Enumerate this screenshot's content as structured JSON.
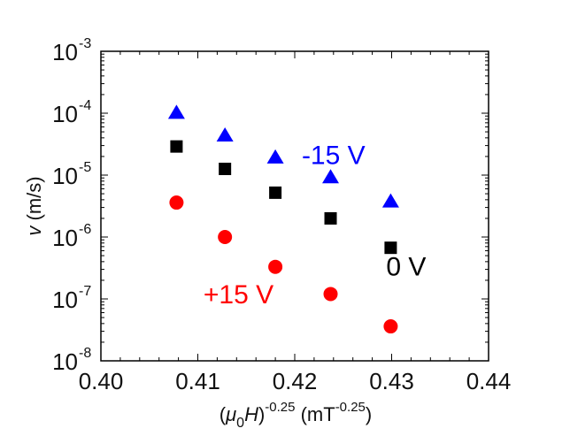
{
  "chart_data": {
    "type": "scatter",
    "title": "",
    "xlabel": {
      "prefix": "(",
      "mu": "μ",
      "mu_sub": "0",
      "H": "H",
      "close": ")",
      "exp": "-0.25",
      "units_open": " (mT",
      "units_exp": "-0.25",
      "units_close": ")"
    },
    "ylabel": {
      "var": "v",
      "units": " (m/s)"
    },
    "xlim": [
      0.4,
      0.44
    ],
    "ylim": [
      1e-08,
      0.001
    ],
    "yscale": "log",
    "x_ticks": [
      "0.40",
      "0.41",
      "0.42",
      "0.43",
      "0.44"
    ],
    "x_tick_values": [
      0.4,
      0.41,
      0.42,
      0.43,
      0.44
    ],
    "y_ticks": [
      {
        "base": "10",
        "exp": "-3",
        "value": -3
      },
      {
        "base": "10",
        "exp": "-4",
        "value": -4
      },
      {
        "base": "10",
        "exp": "-5",
        "value": -5
      },
      {
        "base": "10",
        "exp": "-6",
        "value": -6
      },
      {
        "base": "10",
        "exp": "-7",
        "value": -7
      },
      {
        "base": "10",
        "exp": "-8",
        "value": -8
      }
    ],
    "grid": false,
    "x": [
      0.4078,
      0.4128,
      0.418,
      0.4237,
      0.4299
    ],
    "series": [
      {
        "name": "-15 V",
        "marker": "triangle",
        "color": "#0000ff",
        "values": [
          0.0001,
          4.3e-05,
          1.9e-05,
          9.1e-06,
          3.7e-06
        ]
      },
      {
        "name": "0 V",
        "marker": "square",
        "color": "#000000",
        "values": [
          2.9e-05,
          1.26e-05,
          5.2e-06,
          2e-06,
          6.7e-07
        ]
      },
      {
        "name": "+15 V",
        "marker": "circle",
        "color": "#ff0000",
        "values": [
          3.6e-06,
          1e-06,
          3.3e-07,
          1.2e-07,
          3.6e-08
        ]
      }
    ],
    "annotations": [
      {
        "text": "-15 V",
        "color": "#0000ff",
        "x": 0.424,
        "y": 1.5e-05
      },
      {
        "text": "0 V",
        "color": "#000000",
        "x": 0.4315,
        "y": 2.4e-07
      },
      {
        "text": "+15 V",
        "color": "#ff0000",
        "x": 0.4142,
        "y": 8.5e-08
      }
    ]
  }
}
